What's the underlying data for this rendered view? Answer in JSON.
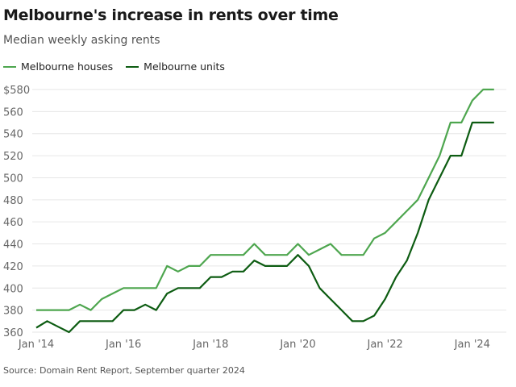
{
  "chart_data": {
    "type": "line",
    "title": "Melbourne's increase in rents over time",
    "subtitle": "Median weekly asking rents",
    "source": "Source: Domain Rent Report, September quarter 2024",
    "xlabel": "",
    "ylabel": "",
    "x_ticks": [
      "Jan '14",
      "Jan '16",
      "Jan '18",
      "Jan '20",
      "Jan '22",
      "Jan '24"
    ],
    "y_ticks": [
      "360",
      "380",
      "400",
      "420",
      "440",
      "460",
      "480",
      "500",
      "520",
      "540",
      "560",
      "$580"
    ],
    "ylim": [
      360,
      580
    ],
    "x_start": "Jan 2014",
    "x_interval": "quarter",
    "grid": true,
    "legend": "top-left",
    "series": [
      {
        "name": "Melbourne houses",
        "color": "#4ea64f",
        "values": [
          380,
          380,
          380,
          380,
          385,
          380,
          390,
          395,
          400,
          400,
          400,
          400,
          420,
          415,
          420,
          420,
          430,
          430,
          430,
          430,
          440,
          430,
          430,
          430,
          440,
          430,
          435,
          440,
          430,
          430,
          430,
          445,
          450,
          460,
          470,
          480,
          500,
          520,
          550,
          550,
          570,
          580,
          580
        ]
      },
      {
        "name": "Melbourne units",
        "color": "#0d5c12",
        "values": [
          364,
          370,
          365,
          360,
          370,
          370,
          370,
          370,
          380,
          380,
          385,
          380,
          395,
          400,
          400,
          400,
          410,
          410,
          415,
          415,
          425,
          420,
          420,
          420,
          430,
          420,
          400,
          390,
          380,
          370,
          370,
          375,
          390,
          410,
          425,
          450,
          480,
          500,
          520,
          520,
          550,
          550,
          550
        ]
      }
    ]
  }
}
